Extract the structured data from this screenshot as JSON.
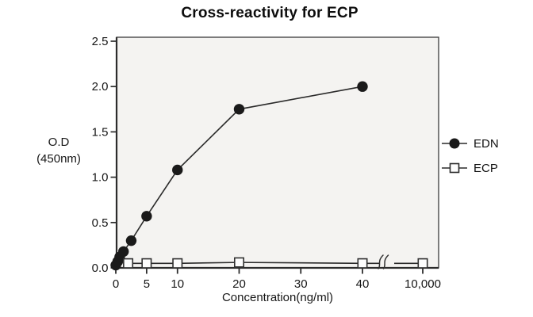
{
  "title": "Cross-reactivity for ECP",
  "axes": {
    "y_label_line1": "O.D",
    "y_label_line2": "(450nm)",
    "x_label": "Concentration(ng/ml)"
  },
  "legend": {
    "position": "right",
    "items": [
      {
        "label": "EDN",
        "marker": "filled-circle"
      },
      {
        "label": "ECP",
        "marker": "open-square"
      }
    ]
  },
  "colors": {
    "series": "#1f1f1f",
    "axis": "#3a3a3a",
    "plot_bg": "#f4f3f1",
    "marker_fill": "#1a1a1a",
    "square_fill": "#fdfdfd",
    "text": "#161616"
  },
  "chart_data": {
    "type": "line",
    "title": "Cross-reactivity for ECP",
    "xlabel": "Concentration(ng/ml)",
    "ylabel": "O.D (450nm)",
    "grid": false,
    "legend_position": "right",
    "ylim": [
      0,
      2.5
    ],
    "y_tick_values": [
      0,
      0.5,
      1,
      1.5,
      2,
      2.5
    ],
    "y_tick_labels": [
      "0.0",
      "0.5",
      "1.0",
      "1.5",
      "2.0",
      "2.5"
    ],
    "x_tick_values": [
      0,
      5,
      10,
      20,
      30,
      40,
      10000
    ],
    "x_tick_labels": [
      "0",
      "5",
      "10",
      "20",
      "30",
      "40",
      "10,000"
    ],
    "x_axis_break": {
      "between": [
        40,
        10000
      ],
      "style": "squiggle"
    },
    "series": [
      {
        "name": "EDN",
        "marker": "filled-circle",
        "points": [
          [
            0,
            0.03
          ],
          [
            0.31,
            0.07
          ],
          [
            0.63,
            0.12
          ],
          [
            1.25,
            0.18
          ],
          [
            2.5,
            0.3
          ],
          [
            5,
            0.57
          ],
          [
            10,
            1.08
          ],
          [
            20,
            1.75
          ],
          [
            40,
            2.0
          ]
        ]
      },
      {
        "name": "ECP",
        "marker": "open-square",
        "points": [
          [
            2,
            0.05
          ],
          [
            5,
            0.05
          ],
          [
            10,
            0.05
          ],
          [
            20,
            0.06
          ],
          [
            40,
            0.05
          ],
          [
            10000,
            0.05
          ]
        ]
      }
    ]
  }
}
